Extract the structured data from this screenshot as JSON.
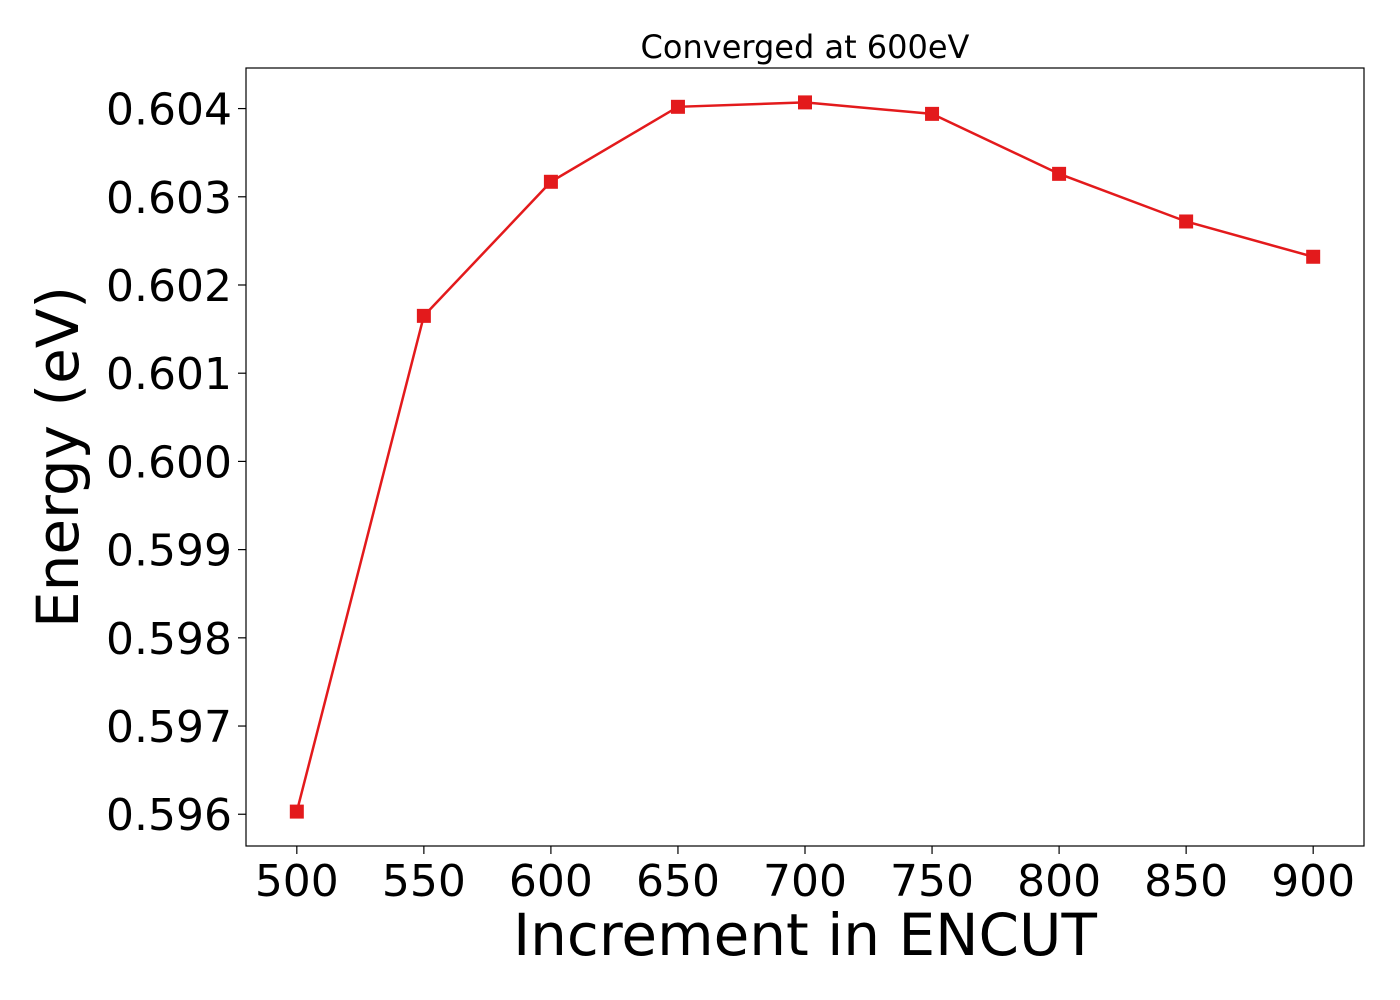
{
  "chart_data": {
    "type": "line",
    "title": "Converged at 600eV",
    "xlabel": "Increment in ENCUT",
    "ylabel": "Energy (eV)",
    "x": [
      500,
      550,
      600,
      650,
      700,
      750,
      800,
      850,
      900
    ],
    "series": [
      {
        "values": [
          0.59603,
          0.60165,
          0.60317,
          0.60402,
          0.60407,
          0.60394,
          0.60326,
          0.60272,
          0.60232
        ],
        "color": "#e31a1c",
        "marker": "square"
      }
    ],
    "xticks": [
      "500",
      "550",
      "600",
      "650",
      "700",
      "750",
      "800",
      "850",
      "900"
    ],
    "yticks": [
      "0.596",
      "0.597",
      "0.598",
      "0.599",
      "0.600",
      "0.601",
      "0.602",
      "0.603",
      "0.604"
    ],
    "xlim": [
      480,
      920
    ],
    "ylim": [
      0.59564,
      0.60446
    ],
    "grid": false
  }
}
